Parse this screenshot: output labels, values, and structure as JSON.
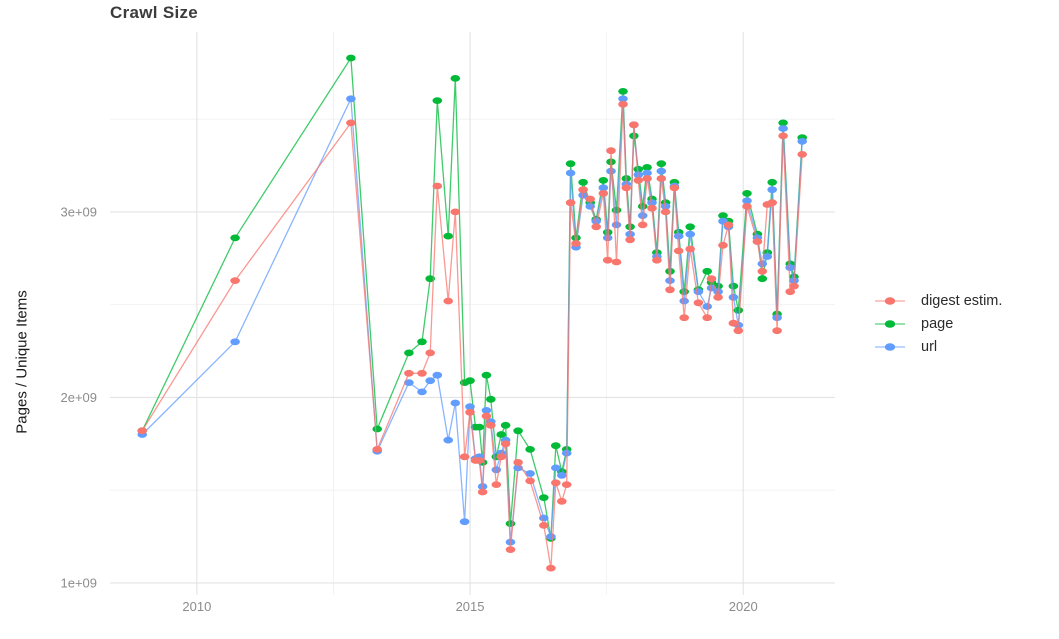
{
  "title": "Crawl Size",
  "ylabel": "Pages / Unique Items",
  "legend": {
    "position": "right",
    "items": [
      {
        "label": "digest estim.",
        "color": "#F8766D"
      },
      {
        "label": "page",
        "color": "#00BA38"
      },
      {
        "label": "url",
        "color": "#619CFF"
      }
    ]
  },
  "colors": {
    "digest": "#F8766D",
    "page": "#00BA38",
    "url": "#619CFF",
    "grid_major": "#e3e3e3",
    "grid_minor": "#f0f0f0",
    "tick_label": "#8c8c8c",
    "title": "#3c3c3c",
    "background": "#ffffff"
  },
  "chart_data": {
    "type": "line",
    "title": "Crawl Size",
    "xlabel": "",
    "ylabel": "Pages / Unique Items",
    "grid": true,
    "legend_position": "right",
    "y_unit": "1e9 (billions of pages / unique items)",
    "xlim": [
      2008.41,
      2021.68
    ],
    "ylim": [
      0.935,
      3.97
    ],
    "x_ticks": [
      {
        "v": 2010,
        "label": "2010"
      },
      {
        "v": 2015,
        "label": "2015"
      },
      {
        "v": 2020,
        "label": "2020"
      }
    ],
    "y_ticks": [
      {
        "v": 1,
        "label": "1e+09"
      },
      {
        "v": 2,
        "label": "2e+09"
      },
      {
        "v": 3,
        "label": "3e+09"
      }
    ],
    "x_minor_ticks": [
      2012.5,
      2017.5
    ],
    "y_minor_ticks": [
      1.5,
      2.5,
      3.5
    ],
    "x": [
      2009.0,
      2010.7,
      2012.82,
      2013.3,
      2013.88,
      2014.12,
      2014.27,
      2014.4,
      2014.6,
      2014.73,
      2014.9,
      2015.0,
      2015.1,
      2015.17,
      2015.23,
      2015.3,
      2015.38,
      2015.48,
      2015.57,
      2015.65,
      2015.74,
      2015.88,
      2016.1,
      2016.35,
      2016.48,
      2016.57,
      2016.68,
      2016.77,
      2016.84,
      2016.94,
      2017.07,
      2017.2,
      2017.31,
      2017.44,
      2017.52,
      2017.58,
      2017.68,
      2017.8,
      2017.86,
      2017.93,
      2018.0,
      2018.08,
      2018.16,
      2018.24,
      2018.33,
      2018.42,
      2018.5,
      2018.58,
      2018.66,
      2018.74,
      2018.82,
      2018.92,
      2019.03,
      2019.18,
      2019.34,
      2019.42,
      2019.54,
      2019.63,
      2019.73,
      2019.82,
      2019.91,
      2020.07,
      2020.26,
      2020.35,
      2020.44,
      2020.53,
      2020.62,
      2020.73,
      2020.86,
      2020.93,
      2021.08
    ],
    "series": [
      {
        "name": "digest estim.",
        "color": "#F8766D",
        "values": [
          1.82,
          2.63,
          3.48,
          1.72,
          2.13,
          2.13,
          2.24,
          3.14,
          2.52,
          3.0,
          1.68,
          1.92,
          1.66,
          1.66,
          1.49,
          1.9,
          1.85,
          1.53,
          1.68,
          1.75,
          1.18,
          1.65,
          1.55,
          1.31,
          1.08,
          1.54,
          1.44,
          1.53,
          3.05,
          2.83,
          3.12,
          3.07,
          2.92,
          3.1,
          2.74,
          3.33,
          2.73,
          3.58,
          3.13,
          2.85,
          3.47,
          3.17,
          2.93,
          3.18,
          3.02,
          2.74,
          3.18,
          3.0,
          2.58,
          3.13,
          2.79,
          2.43,
          2.8,
          2.51,
          2.43,
          2.64,
          2.54,
          2.82,
          2.93,
          2.4,
          2.36,
          3.03,
          2.84,
          2.68,
          3.04,
          3.05,
          2.36,
          3.41,
          2.57,
          2.6,
          3.31
        ]
      },
      {
        "name": "page",
        "color": "#00BA38",
        "values": [
          1.82,
          2.86,
          3.83,
          1.83,
          2.24,
          2.3,
          2.64,
          3.6,
          2.87,
          3.72,
          2.08,
          2.09,
          1.84,
          1.84,
          1.65,
          2.12,
          1.99,
          1.68,
          1.8,
          1.85,
          1.32,
          1.82,
          1.72,
          1.46,
          1.24,
          1.74,
          1.6,
          1.72,
          3.26,
          2.86,
          3.16,
          3.05,
          2.96,
          3.17,
          2.89,
          3.27,
          3.01,
          3.65,
          3.18,
          2.92,
          3.41,
          3.23,
          3.03,
          3.24,
          3.07,
          2.78,
          3.26,
          3.05,
          2.68,
          3.16,
          2.89,
          2.57,
          2.92,
          2.58,
          2.68,
          2.62,
          2.6,
          2.98,
          2.95,
          2.6,
          2.47,
          3.1,
          2.88,
          2.64,
          2.78,
          3.16,
          2.45,
          3.48,
          2.72,
          2.65,
          3.4
        ]
      },
      {
        "name": "url",
        "color": "#619CFF",
        "values": [
          1.8,
          2.3,
          3.61,
          1.71,
          2.08,
          2.03,
          2.09,
          2.12,
          1.77,
          1.97,
          1.33,
          1.95,
          1.67,
          1.68,
          1.52,
          1.93,
          1.87,
          1.61,
          1.7,
          1.77,
          1.22,
          1.62,
          1.59,
          1.35,
          1.25,
          1.62,
          1.58,
          1.7,
          3.21,
          2.81,
          3.09,
          3.03,
          2.95,
          3.13,
          2.86,
          3.22,
          2.93,
          3.61,
          3.15,
          2.88,
          3.47,
          3.2,
          2.98,
          3.21,
          3.05,
          2.76,
          3.22,
          3.03,
          2.63,
          3.14,
          2.87,
          2.52,
          2.88,
          2.57,
          2.49,
          2.59,
          2.57,
          2.95,
          2.92,
          2.54,
          2.39,
          3.06,
          2.86,
          2.72,
          2.76,
          3.12,
          2.43,
          3.45,
          2.7,
          2.63,
          3.38
        ]
      }
    ],
    "draw_order": [
      "page",
      "url",
      "digest estim."
    ]
  }
}
